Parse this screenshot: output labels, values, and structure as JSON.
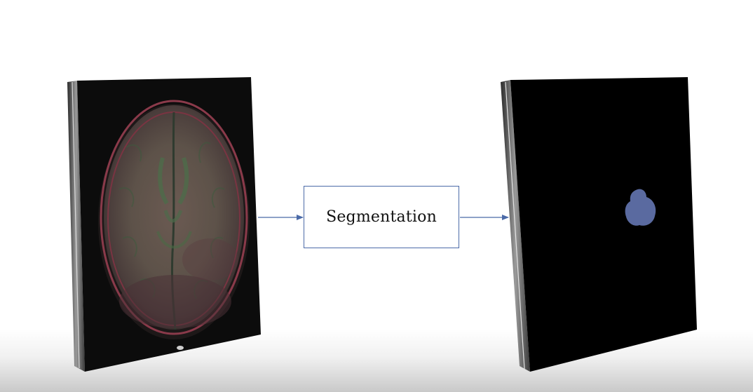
{
  "process": {
    "label": "Segmentation"
  },
  "colors": {
    "arrow": "#4b6aa8",
    "mask_region": "#5a6aa0",
    "slab_face": "#0a0a0a"
  },
  "icons": {
    "input_image": "brain-mri-slice",
    "output_image": "segmentation-mask"
  }
}
